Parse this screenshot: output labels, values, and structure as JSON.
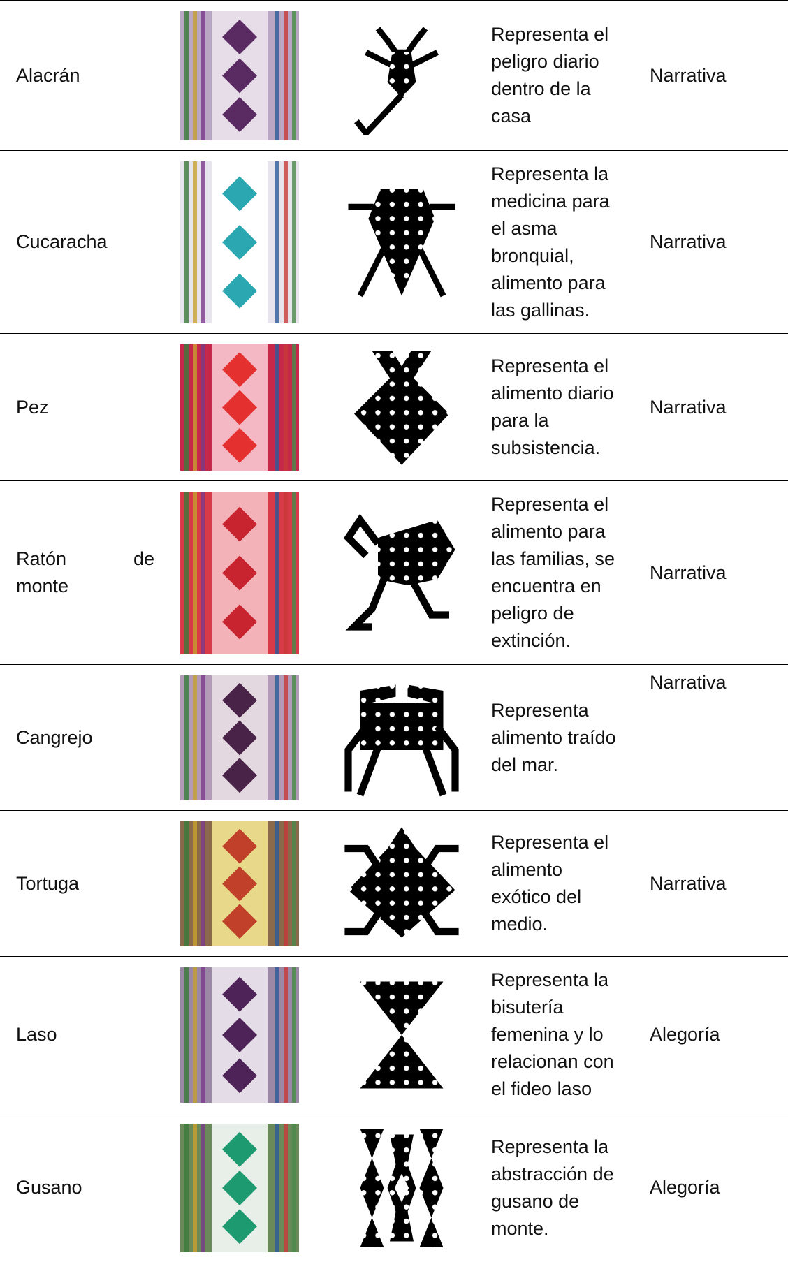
{
  "table": {
    "rows": [
      {
        "name": [
          "Alacrán"
        ],
        "description": [
          "Representa el",
          "peligro diario",
          "dentro de la",
          "casa"
        ],
        "type": "Narrativa"
      },
      {
        "name": [
          "Cucaracha"
        ],
        "description": [
          "Representa la",
          "medicina para",
          "el asma",
          "bronquial,",
          "alimento para",
          "las gallinas."
        ],
        "type": "Narrativa"
      },
      {
        "name": [
          "Pez"
        ],
        "description": [
          "Representa el",
          "alimento diario",
          "para la",
          "subsistencia."
        ],
        "type": "Narrativa"
      },
      {
        "name": [
          "Ratón de",
          "monte"
        ],
        "description": [
          "Representa el",
          "alimento para",
          "las familias, se",
          "encuentra en",
          "peligro de",
          "extinción."
        ],
        "type": "Narrativa"
      },
      {
        "name": [
          "Cangrejo"
        ],
        "description": [
          "Representa",
          "alimento traído",
          "del mar."
        ],
        "type": "Narrativa"
      },
      {
        "name": [
          "Tortuga"
        ],
        "description": [
          "Representa el",
          "alimento",
          "exótico del",
          "medio."
        ],
        "type": "Narrativa"
      },
      {
        "name": [
          "Laso"
        ],
        "description": [
          "Representa la",
          "bisutería",
          "femenina y lo",
          "relacionan con",
          "el fideo laso"
        ],
        "type": "Alegoría"
      },
      {
        "name": [
          "Gusano"
        ],
        "description": [
          "Representa la",
          "abstracción de",
          "gusano de",
          "monte."
        ],
        "type": "Alegoría"
      }
    ]
  }
}
